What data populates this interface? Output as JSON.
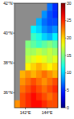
{
  "chart_data": {
    "type": "heatmap",
    "x": [
      141.25,
      141.75,
      142.25,
      142.75,
      143.25,
      143.75,
      144.25,
      144.75
    ],
    "y": [
      41.75,
      41.25,
      40.75,
      40.25,
      39.75,
      39.25,
      38.75,
      38.25,
      37.75,
      37.25,
      36.75,
      36.25,
      35.75,
      35.25
    ],
    "cells": [
      [
        null,
        null,
        null,
        null,
        null,
        null,
        7,
        5
      ],
      [
        null,
        null,
        null,
        null,
        null,
        8,
        6,
        5
      ],
      [
        null,
        null,
        null,
        null,
        9,
        7,
        6,
        6
      ],
      [
        null,
        null,
        null,
        11,
        10,
        8,
        7,
        8
      ],
      [
        null,
        null,
        null,
        13,
        12,
        10,
        9,
        11
      ],
      [
        null,
        null,
        15,
        14,
        13,
        14,
        15,
        14
      ],
      [
        null,
        null,
        16,
        16,
        17,
        16,
        17,
        16
      ],
      [
        null,
        null,
        17,
        18,
        19,
        18,
        17,
        18
      ],
      [
        null,
        null,
        19,
        20,
        21,
        20,
        19,
        20
      ],
      [
        null,
        21,
        22,
        21,
        22,
        23,
        22,
        21
      ],
      [
        null,
        22,
        23,
        24,
        23,
        22,
        23,
        24
      ],
      [
        null,
        23,
        24,
        25,
        24,
        23,
        24,
        25
      ],
      [
        null,
        24,
        25,
        26,
        25,
        24,
        23,
        24
      ],
      [
        22,
        24,
        25,
        26,
        26,
        25,
        24,
        24
      ]
    ],
    "xlim": [
      141,
      145
    ],
    "xticks": [
      {
        "value": 142,
        "label": "142°E"
      },
      {
        "value": 144,
        "label": "144°E"
      }
    ],
    "ylim": [
      35,
      42
    ],
    "yticks": [
      {
        "value": 36,
        "label": "36°N"
      },
      {
        "value": 38,
        "label": "38°N"
      },
      {
        "value": 40,
        "label": "40°N"
      },
      {
        "value": 42,
        "label": "42°N"
      }
    ],
    "colorbar": {
      "range": [
        0,
        30
      ],
      "ticks": [
        0,
        5,
        10,
        15,
        20,
        25,
        30
      ]
    }
  }
}
